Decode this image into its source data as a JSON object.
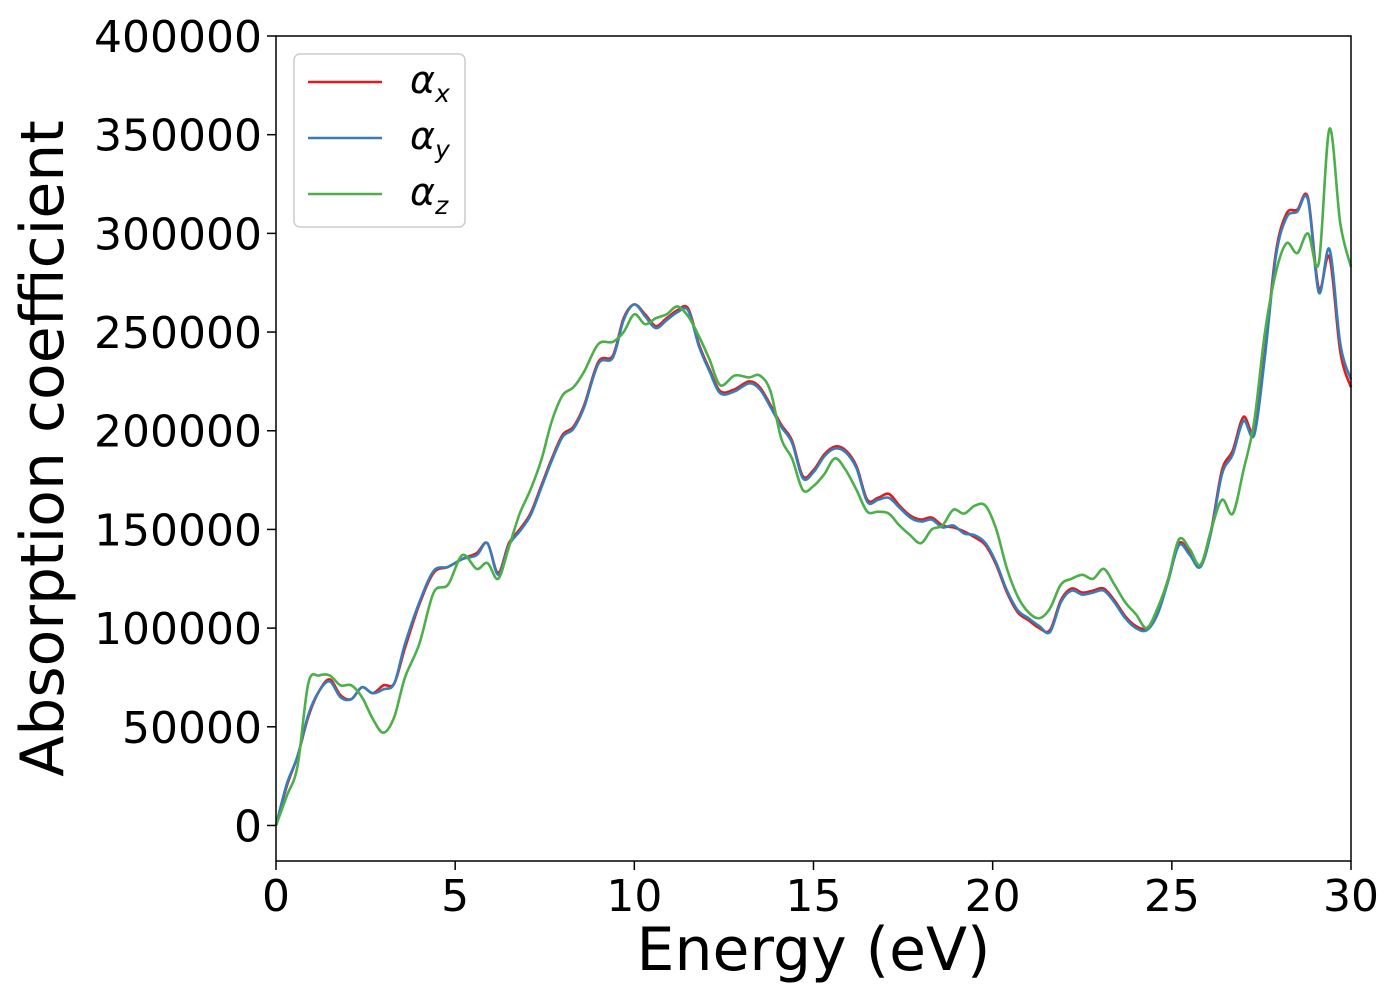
{
  "chart_data": {
    "type": "line",
    "title": "",
    "xlabel": "Energy (eV)",
    "ylabel": "Absorption coefficient",
    "xlim": [
      0,
      30
    ],
    "ylim": [
      -18000,
      400000
    ],
    "xticks": [
      0,
      5,
      10,
      15,
      20,
      25,
      30
    ],
    "xtick_labels": [
      "0",
      "5",
      "10",
      "15",
      "20",
      "25",
      "30"
    ],
    "yticks": [
      0,
      50000,
      100000,
      150000,
      200000,
      250000,
      300000,
      350000,
      400000
    ],
    "ytick_labels": [
      "0",
      "50000",
      "100000",
      "150000",
      "200000",
      "250000",
      "300000",
      "350000",
      "400000"
    ],
    "grid": false,
    "legend_position": "top-left",
    "series": [
      {
        "name": "α",
        "subscript": "x",
        "color": "#e41a1c",
        "x": [
          0,
          0.3,
          0.6,
          0.9,
          1.2,
          1.5,
          1.8,
          2.1,
          2.4,
          2.7,
          3.0,
          3.3,
          3.6,
          4.0,
          4.4,
          4.8,
          5.2,
          5.6,
          5.9,
          6.2,
          6.5,
          6.8,
          7.1,
          7.4,
          7.7,
          8.0,
          8.3,
          8.6,
          9.0,
          9.4,
          9.7,
          10.0,
          10.3,
          10.6,
          10.9,
          11.2,
          11.5,
          11.8,
          12.1,
          12.4,
          12.8,
          13.2,
          13.5,
          13.8,
          14.1,
          14.4,
          14.7,
          15.0,
          15.3,
          15.6,
          15.9,
          16.2,
          16.5,
          16.8,
          17.1,
          17.4,
          17.7,
          18.0,
          18.3,
          18.6,
          18.9,
          19.2,
          19.5,
          19.8,
          20.1,
          20.4,
          20.7,
          21.0,
          21.3,
          21.6,
          21.9,
          22.2,
          22.5,
          22.8,
          23.1,
          23.4,
          23.7,
          24.0,
          24.3,
          24.6,
          24.9,
          25.2,
          25.5,
          25.8,
          26.1,
          26.4,
          26.7,
          27.0,
          27.3,
          27.6,
          27.9,
          28.2,
          28.5,
          28.8,
          29.1,
          29.4,
          29.7,
          30.0
        ],
        "y": [
          0,
          20000,
          35000,
          55000,
          68000,
          74000,
          66000,
          64000,
          70000,
          67000,
          71000,
          72000,
          90000,
          112000,
          128000,
          131000,
          135000,
          138000,
          143000,
          128000,
          143000,
          150000,
          158000,
          172000,
          186000,
          198000,
          202000,
          213000,
          235000,
          238000,
          257000,
          264000,
          259000,
          253000,
          257000,
          261000,
          262000,
          244000,
          231000,
          220000,
          221000,
          225000,
          222000,
          213000,
          203000,
          195000,
          177000,
          180000,
          188000,
          192000,
          190000,
          182000,
          165000,
          166000,
          168000,
          162000,
          157000,
          155000,
          156000,
          152000,
          151000,
          149000,
          146000,
          142000,
          132000,
          118000,
          108000,
          104000,
          100000,
          99000,
          114000,
          120000,
          118000,
          119000,
          120000,
          114000,
          106000,
          101000,
          100000,
          108000,
          125000,
          143000,
          138000,
          132000,
          150000,
          180000,
          190000,
          207000,
          200000,
          240000,
          290000,
          310000,
          312000,
          318000,
          272000,
          288000,
          240000,
          222000
        ]
      },
      {
        "name": "α",
        "subscript": "y",
        "color": "#377eb8",
        "x": [
          0,
          0.3,
          0.6,
          0.9,
          1.2,
          1.5,
          1.8,
          2.1,
          2.4,
          2.7,
          3.0,
          3.3,
          3.6,
          4.0,
          4.4,
          4.8,
          5.2,
          5.6,
          5.9,
          6.2,
          6.5,
          6.8,
          7.1,
          7.4,
          7.7,
          8.0,
          8.3,
          8.6,
          9.0,
          9.4,
          9.7,
          10.0,
          10.3,
          10.6,
          10.9,
          11.2,
          11.5,
          11.8,
          12.1,
          12.4,
          12.8,
          13.2,
          13.5,
          13.8,
          14.1,
          14.4,
          14.7,
          15.0,
          15.3,
          15.6,
          15.9,
          16.2,
          16.5,
          16.8,
          17.1,
          17.4,
          17.7,
          18.0,
          18.3,
          18.6,
          18.9,
          19.2,
          19.5,
          19.8,
          20.1,
          20.4,
          20.7,
          21.0,
          21.3,
          21.6,
          21.9,
          22.2,
          22.5,
          22.8,
          23.1,
          23.4,
          23.7,
          24.0,
          24.3,
          24.6,
          24.9,
          25.2,
          25.5,
          25.8,
          26.1,
          26.4,
          26.7,
          27.0,
          27.3,
          27.6,
          27.9,
          28.2,
          28.5,
          28.8,
          29.1,
          29.4,
          29.7,
          30.0
        ],
        "y": [
          0,
          21000,
          35000,
          56000,
          68000,
          73000,
          65000,
          64000,
          70000,
          67000,
          69000,
          72000,
          92000,
          113000,
          129000,
          131000,
          135000,
          137000,
          143000,
          127000,
          142000,
          149000,
          157000,
          171000,
          185000,
          197000,
          201000,
          212000,
          234000,
          237000,
          256000,
          264000,
          258000,
          252000,
          256000,
          260000,
          261000,
          243000,
          230000,
          219000,
          220000,
          224000,
          221000,
          212000,
          202000,
          194000,
          176000,
          179000,
          187000,
          191000,
          189000,
          181000,
          164000,
          165000,
          166000,
          161000,
          156000,
          154000,
          155000,
          151000,
          152000,
          148000,
          147000,
          143000,
          133000,
          119000,
          109000,
          105000,
          101000,
          98000,
          113000,
          119000,
          117000,
          118000,
          119000,
          113000,
          105000,
          100000,
          99000,
          107000,
          124000,
          142000,
          137000,
          131000,
          149000,
          178000,
          188000,
          205000,
          198000,
          238000,
          288000,
          308000,
          311000,
          317000,
          270000,
          292000,
          244000,
          226000
        ]
      },
      {
        "name": "α",
        "subscript": "z",
        "color": "#4daf4a",
        "x": [
          0,
          0.3,
          0.6,
          0.9,
          1.2,
          1.5,
          1.8,
          2.1,
          2.4,
          2.7,
          3.0,
          3.3,
          3.6,
          4.0,
          4.4,
          4.8,
          5.2,
          5.6,
          5.9,
          6.2,
          6.5,
          6.8,
          7.1,
          7.4,
          7.7,
          8.0,
          8.3,
          8.6,
          9.0,
          9.4,
          9.7,
          10.0,
          10.3,
          10.6,
          10.9,
          11.2,
          11.5,
          11.8,
          12.1,
          12.4,
          12.8,
          13.2,
          13.5,
          13.8,
          14.1,
          14.4,
          14.7,
          15.0,
          15.3,
          15.6,
          15.9,
          16.2,
          16.5,
          16.8,
          17.1,
          17.4,
          17.7,
          18.0,
          18.3,
          18.6,
          18.9,
          19.2,
          19.5,
          19.8,
          20.1,
          20.4,
          20.7,
          21.0,
          21.3,
          21.6,
          21.9,
          22.2,
          22.5,
          22.8,
          23.1,
          23.4,
          23.7,
          24.0,
          24.3,
          24.6,
          24.9,
          25.2,
          25.5,
          25.8,
          26.1,
          26.4,
          26.7,
          27.0,
          27.3,
          27.6,
          27.9,
          28.2,
          28.5,
          28.8,
          29.1,
          29.4,
          29.7,
          30.0
        ],
        "y": [
          0,
          15000,
          30000,
          72000,
          76000,
          76000,
          71000,
          71000,
          65000,
          54000,
          47000,
          55000,
          75000,
          92000,
          118000,
          122000,
          137000,
          130000,
          133000,
          125000,
          141000,
          158000,
          170000,
          185000,
          205000,
          218000,
          222000,
          230000,
          244000,
          245000,
          250000,
          259000,
          254000,
          257000,
          259000,
          263000,
          258000,
          248000,
          236000,
          223000,
          228000,
          227000,
          228000,
          220000,
          196000,
          186000,
          170000,
          172000,
          178000,
          186000,
          180000,
          170000,
          159000,
          159000,
          158000,
          152000,
          147000,
          143000,
          150000,
          152000,
          160000,
          158000,
          162000,
          162000,
          150000,
          130000,
          116000,
          108000,
          105000,
          110000,
          122000,
          125000,
          127000,
          125000,
          130000,
          122000,
          113000,
          107000,
          100000,
          110000,
          125000,
          145000,
          140000,
          132000,
          150000,
          165000,
          158000,
          180000,
          205000,
          250000,
          280000,
          295000,
          290000,
          300000,
          285000,
          353000,
          305000,
          283000
        ]
      }
    ]
  }
}
